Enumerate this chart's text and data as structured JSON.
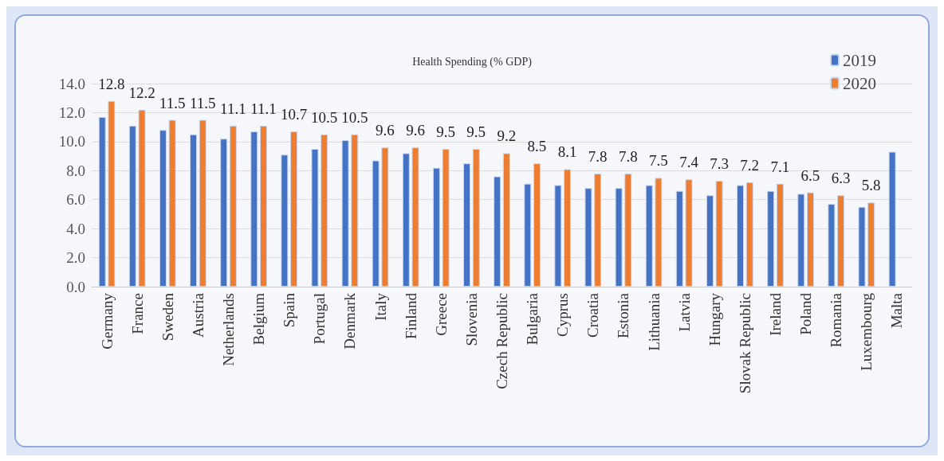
{
  "chart_data": {
    "type": "bar",
    "title": "Health Spending (% GDP)",
    "categories": [
      "Germany",
      "France",
      "Sweden",
      "Austria",
      "Netherlands",
      "Belgium",
      "Spain",
      "Portugal",
      "Denmark",
      "Italy",
      "Finland",
      "Greece",
      "Slovenia",
      "Czech Republic",
      "Bulgaria",
      "Cyprus",
      "Croatia",
      "Estonia",
      "Lithuania",
      "Latvia",
      "Hungary",
      "Slovak Republic",
      "Ireland",
      "Poland",
      "Romania",
      "Luxembourg",
      "Malta"
    ],
    "series": [
      {
        "name": "2019",
        "color": "#4472c4",
        "values": [
          11.7,
          11.1,
          10.8,
          10.5,
          10.2,
          10.7,
          9.1,
          9.5,
          10.1,
          8.7,
          9.2,
          8.2,
          8.5,
          7.6,
          7.1,
          7.0,
          6.8,
          6.8,
          7.0,
          6.6,
          6.3,
          7.0,
          6.6,
          6.4,
          5.7,
          5.5,
          9.3
        ]
      },
      {
        "name": "2020",
        "color": "#ed7d31",
        "values": [
          12.8,
          12.2,
          11.5,
          11.5,
          11.1,
          11.1,
          10.7,
          10.5,
          10.5,
          9.6,
          9.6,
          9.5,
          9.5,
          9.2,
          8.5,
          8.1,
          7.8,
          7.8,
          7.5,
          7.4,
          7.3,
          7.2,
          7.1,
          6.5,
          6.3,
          5.8,
          null
        ],
        "value_labels": [
          "12.8",
          "12.2",
          "11.5",
          "11.5",
          "11.1",
          "11.1",
          "10.7",
          "10.5",
          "10.5",
          "9.6",
          "9.6",
          "9.5",
          "9.5",
          "9.2",
          "8.5",
          "8.1",
          "7.8",
          "7.8",
          "7.5",
          "7.4",
          "7.3",
          "7.2",
          "7.1",
          "6.5",
          "6.3",
          "5.8",
          null
        ]
      }
    ],
    "ylim": [
      0,
      14
    ],
    "yticks": [
      {
        "value": 0,
        "label": "0.0"
      },
      {
        "value": 2,
        "label": "2.0"
      },
      {
        "value": 4,
        "label": "4.0"
      },
      {
        "value": 6,
        "label": "6.0"
      },
      {
        "value": 8,
        "label": "8.0"
      },
      {
        "value": 10,
        "label": "10.0"
      },
      {
        "value": 12,
        "label": "12.0"
      },
      {
        "value": 14,
        "label": "14.0"
      }
    ],
    "grid": "y",
    "legend": "top right"
  }
}
